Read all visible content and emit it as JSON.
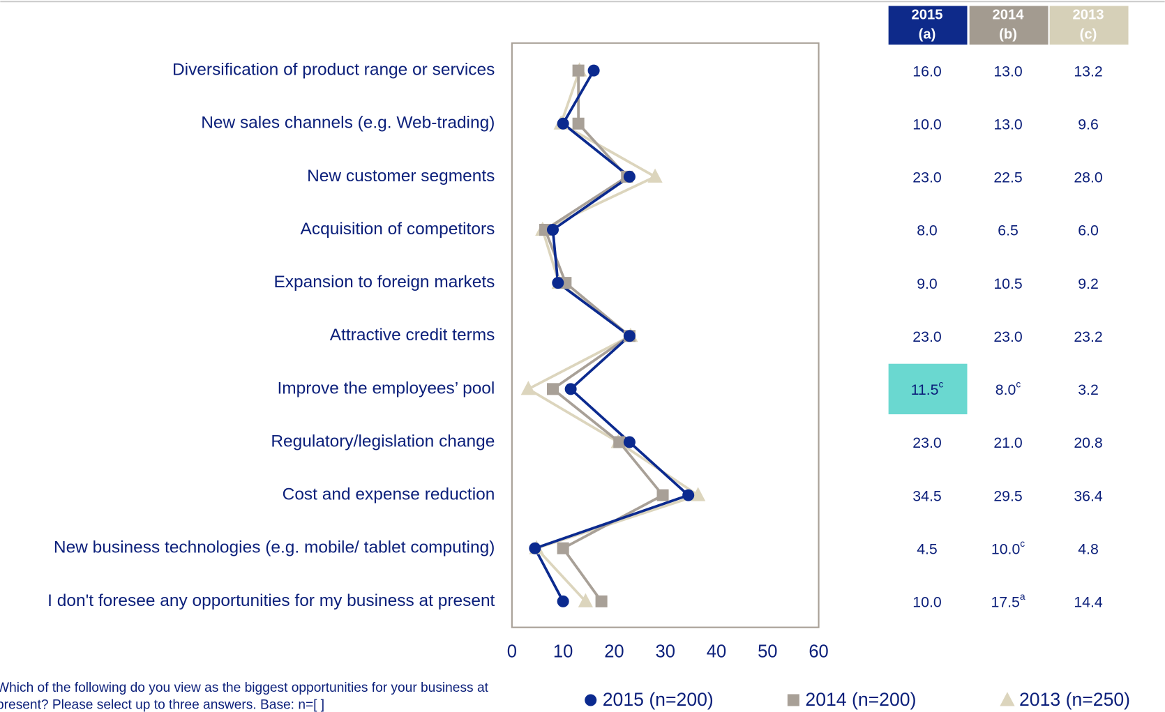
{
  "chart_data": {
    "type": "line",
    "categories": [
      "Diversification of product range or services",
      "New sales channels (e.g. Web-trading)",
      "New customer segments",
      "Acquisition of competitors",
      "Expansion to foreign markets",
      "Attractive credit terms",
      "Improve the employees’ pool",
      "Regulatory/legislation change",
      "Cost and expense reduction",
      "New business technologies (e.g. mobile/ tablet computing)",
      "I don't foresee any opportunities for my business at present"
    ],
    "xlim": [
      0,
      60
    ],
    "xticks": [
      0,
      10,
      20,
      30,
      40,
      50,
      60
    ],
    "series": [
      {
        "name": "2015 (n=200)",
        "header": [
          "2015",
          "(a)"
        ],
        "color": "#0b2a8f",
        "header_color": "#0e2a8a",
        "marker": "circle",
        "values": [
          16,
          10,
          23,
          8,
          9,
          23,
          11.5,
          23,
          34.5,
          4.5,
          10
        ],
        "value_labels": [
          "16.0",
          "10.0",
          "23.0",
          "8.0",
          "9.0",
          "23.0",
          "11.5",
          "23.0",
          "34.5",
          "4.5",
          "10.0"
        ],
        "superscripts": [
          {
            "row": 6,
            "text": "c"
          }
        ],
        "highlight": [
          6
        ],
        "highlight_color": "#6ad8d0"
      },
      {
        "name": "2014 (n=200)",
        "header": [
          "2014",
          "(b)"
        ],
        "color": "#a8a097",
        "header_color": "#a39b90",
        "marker": "square",
        "values": [
          13,
          13,
          22.5,
          6.5,
          10.5,
          23,
          8,
          21,
          29.5,
          10,
          17.5
        ],
        "value_labels": [
          "13.0",
          "13.0",
          "22.5",
          "6.5",
          "10.5",
          "23.0",
          "8.0",
          "21.0",
          "29.5",
          "10.0",
          "17.5"
        ],
        "superscripts": [
          {
            "row": 6,
            "text": "c"
          },
          {
            "row": 9,
            "text": "c"
          },
          {
            "row": 10,
            "text": "a"
          }
        ],
        "highlight": []
      },
      {
        "name": "2013 (n=250)",
        "header": [
          "2013",
          "(c)"
        ],
        "color": "#dcd5bd",
        "header_color": "#d6d0b8",
        "marker": "triangle",
        "values": [
          13.2,
          9.6,
          28,
          6,
          9.2,
          23.2,
          3.2,
          20.8,
          36.4,
          4.8,
          14.4
        ],
        "value_labels": [
          "13.2",
          "9.6",
          "28.0",
          "6.0",
          "9.2",
          "23.2",
          "3.2",
          "20.8",
          "36.4",
          "4.8",
          "14.4"
        ],
        "superscripts": [],
        "highlight": []
      }
    ],
    "footnote": [
      "Which of the following do you view as the biggest opportunities for your business at",
      "present? Please select up to three answers. Base: n=[ ]"
    ]
  }
}
